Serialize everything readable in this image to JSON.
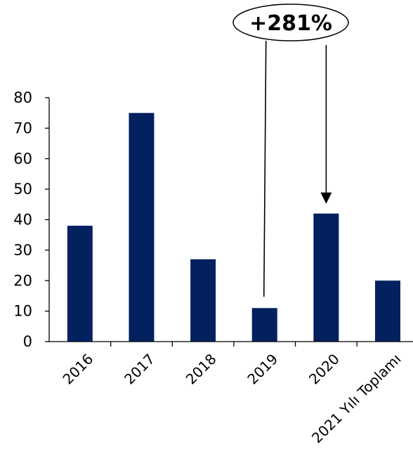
{
  "chart_data": {
    "type": "bar",
    "categories": [
      "2016",
      "2017",
      "2018",
      "2019",
      "2020",
      "2021 Yılı Toplamı"
    ],
    "values": [
      38,
      75,
      27,
      11,
      42,
      20
    ],
    "ylim": [
      0,
      80
    ],
    "yticks": [
      "0",
      "10",
      "20",
      "30",
      "40",
      "50",
      "60",
      "70",
      "80"
    ],
    "grid": false,
    "bar_color": "#03215f",
    "annotation": {
      "text": "+281%",
      "from_category": "2019",
      "to_category": "2020"
    }
  }
}
